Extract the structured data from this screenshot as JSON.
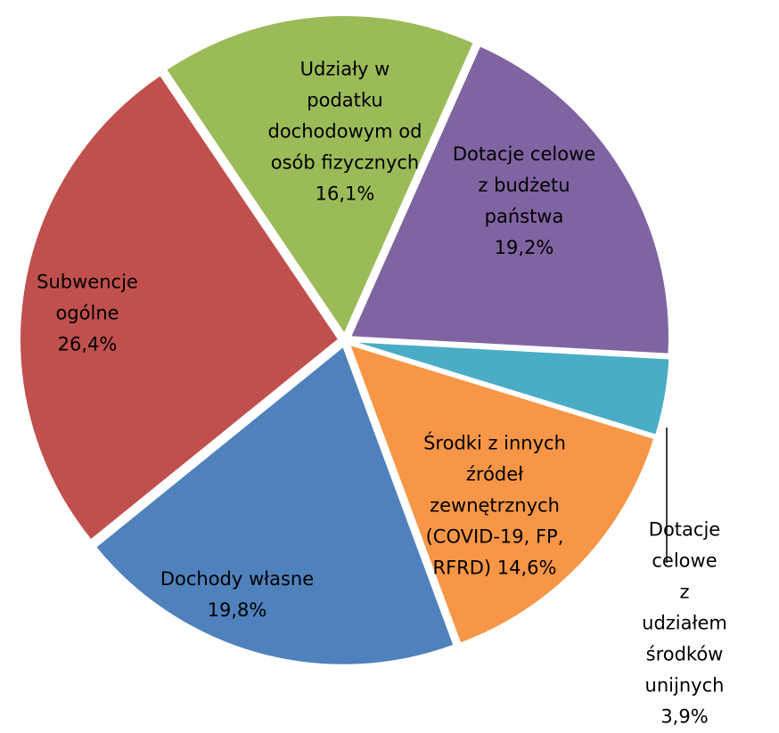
{
  "chart_data": {
    "type": "pie",
    "categories": [
      "Udziały w\npodatku\ndochodowym od\nosób fizycznych",
      "Dotacje celowe\nz budżetu\npaństwa",
      "Dotacje celowe\nz udziałem\nśrodków unijnych",
      "Środki z innych\nźródeł\nzewnętrznych\n(COVID-19, FP,\nRFRD)",
      "Dochody własne",
      "Subwencje\nogólne"
    ],
    "values": [
      16.1,
      19.2,
      3.9,
      14.6,
      19.8,
      26.4
    ],
    "value_labels": [
      "16,1%",
      "19,2%",
      "3,9%",
      "14,6%",
      "19,8%",
      "26,4%"
    ],
    "colors": [
      "#9bbb59",
      "#8064a2",
      "#4bacc6",
      "#f79646",
      "#4f81bd",
      "#c0504d"
    ]
  }
}
